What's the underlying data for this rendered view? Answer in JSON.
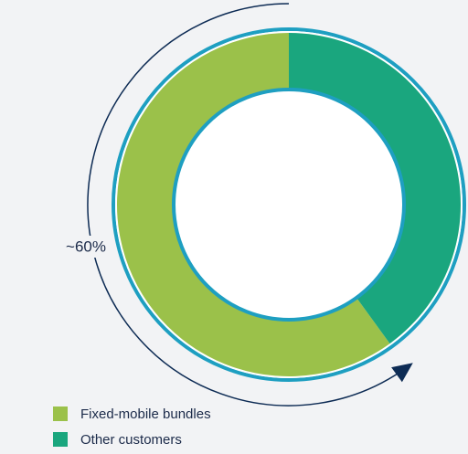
{
  "chart_data": {
    "type": "donut",
    "categories": [
      "Fixed-mobile bundles",
      "Other customers"
    ],
    "values": [
      60,
      40
    ],
    "colors": [
      "#9bc14a",
      "#1aa67e"
    ],
    "annotation": "~60%"
  }
}
